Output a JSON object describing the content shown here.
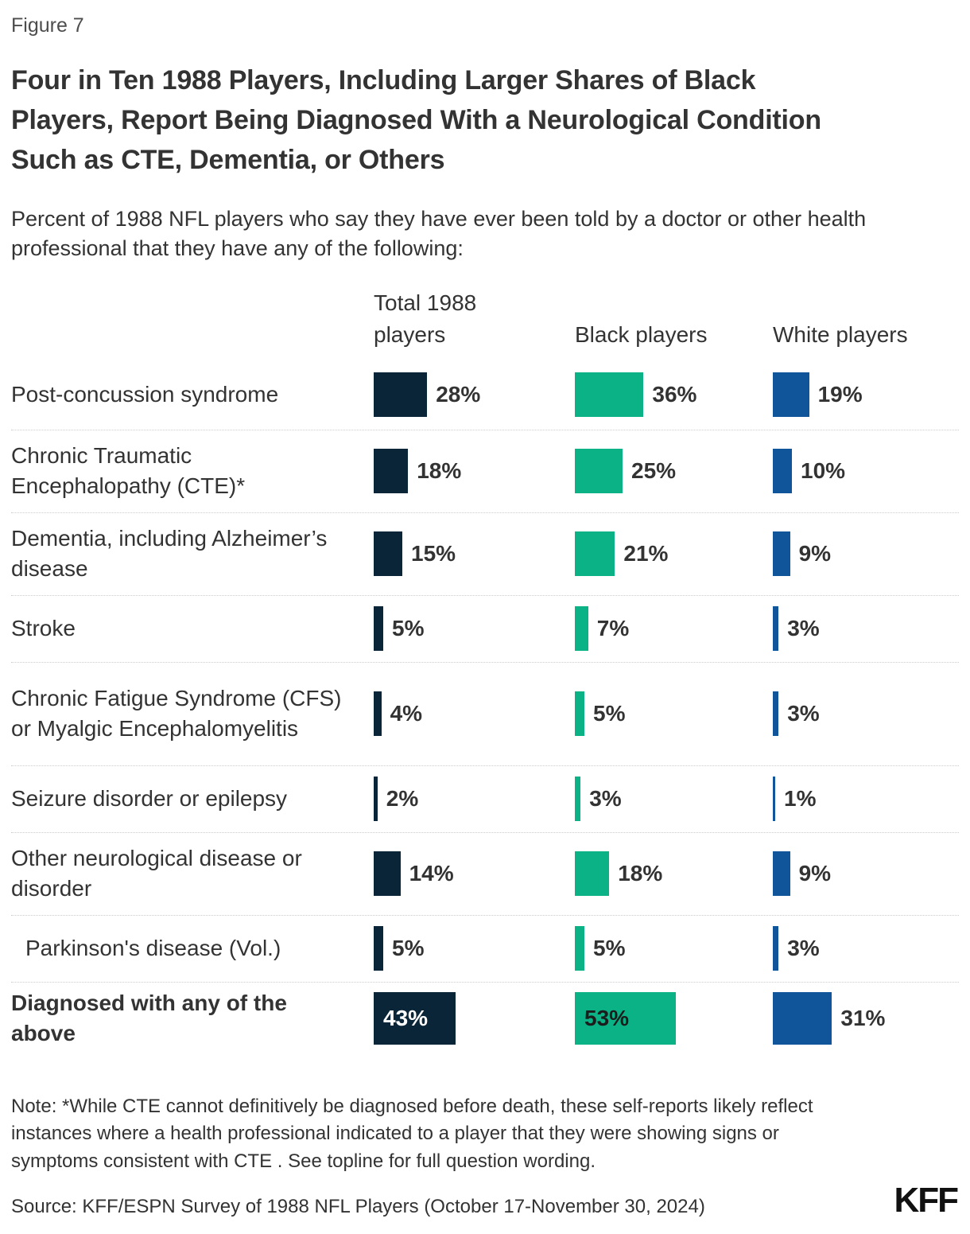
{
  "figure_label": "Figure 7",
  "title": "Four in Ten 1988 Players, Including Larger Shares of Black Players, Report Being Diagnosed With a Neurological Condition Such as CTE, Dementia, or Others",
  "subtitle": "Percent of 1988 NFL players who say they have ever been told by a doctor or other health professional that they have any of the following:",
  "columns": [
    "Total 1988 players",
    "Black players",
    "White players"
  ],
  "colors": {
    "total": "#0b2538",
    "black_players": "#0ab286",
    "white_players": "#10559a"
  },
  "rows": [
    {
      "label": "Post-concussion syndrome",
      "values": [
        28,
        36,
        19
      ],
      "display": [
        "28%",
        "36%",
        "19%"
      ]
    },
    {
      "label": "Chronic Traumatic Encephalopathy (CTE)*",
      "values": [
        18,
        25,
        10
      ],
      "display": [
        "18%",
        "25%",
        "10%"
      ]
    },
    {
      "label": "Dementia, including Alzheimer’s disease",
      "values": [
        15,
        21,
        9
      ],
      "display": [
        "15%",
        "21%",
        "9%"
      ]
    },
    {
      "label": "Stroke",
      "values": [
        5,
        7,
        3
      ],
      "display": [
        "5%",
        "7%",
        "3%"
      ]
    },
    {
      "label": "Chronic Fatigue Syndrome (CFS) or Myalgic Encephalomyelitis",
      "values": [
        4,
        5,
        3
      ],
      "display": [
        "4%",
        "5%",
        "3%"
      ]
    },
    {
      "label": "Seizure disorder or epilepsy",
      "values": [
        2,
        3,
        1
      ],
      "display": [
        "2%",
        "3%",
        "1%"
      ]
    },
    {
      "label": "Other neurological disease or disorder",
      "values": [
        14,
        18,
        9
      ],
      "display": [
        "14%",
        "18%",
        "9%"
      ]
    },
    {
      "label": "Parkinson's disease (Vol.)",
      "values": [
        5,
        5,
        3
      ],
      "display": [
        "5%",
        "5%",
        "3%"
      ]
    },
    {
      "label": "Diagnosed with any of the above",
      "values": [
        43,
        53,
        31
      ],
      "display": [
        "43%",
        "53%",
        "31%"
      ]
    }
  ],
  "note": "Note: *While CTE cannot definitively be diagnosed before death, these self-reports likely reflect instances where a health professional indicated to a player that they were showing signs or symptoms consistent with CTE . See topline for full question wording.",
  "source": "Source: KFF/ESPN Survey of 1988 NFL Players (October 17-November 30, 2024)",
  "logo": "KFF",
  "chart_data": {
    "type": "bar",
    "orientation": "horizontal",
    "title": "Four in Ten 1988 Players, Including Larger Shares of Black Players, Report Being Diagnosed With a Neurological Condition Such as CTE, Dementia, or Others",
    "subtitle": "Percent of 1988 NFL players who say they have ever been told by a doctor or other health professional that they have any of the following:",
    "categories": [
      "Post-concussion syndrome",
      "Chronic Traumatic Encephalopathy (CTE)*",
      "Dementia, including Alzheimer’s disease",
      "Stroke",
      "Chronic Fatigue Syndrome (CFS) or Myalgic Encephalomyelitis",
      "Seizure disorder or epilepsy",
      "Other neurological disease or disorder",
      "Parkinson's disease (Vol.)",
      "Diagnosed with any of the above"
    ],
    "series": [
      {
        "name": "Total 1988 players",
        "color": "#0b2538",
        "values": [
          28,
          18,
          15,
          5,
          4,
          2,
          14,
          5,
          43
        ]
      },
      {
        "name": "Black players",
        "color": "#0ab286",
        "values": [
          36,
          25,
          21,
          7,
          5,
          3,
          18,
          5,
          53
        ]
      },
      {
        "name": "White players",
        "color": "#10559a",
        "values": [
          19,
          10,
          9,
          3,
          3,
          1,
          9,
          3,
          31
        ]
      }
    ],
    "value_format": "percent",
    "xlim": [
      0,
      60
    ],
    "grid": false,
    "legend_position": "column-headers"
  }
}
